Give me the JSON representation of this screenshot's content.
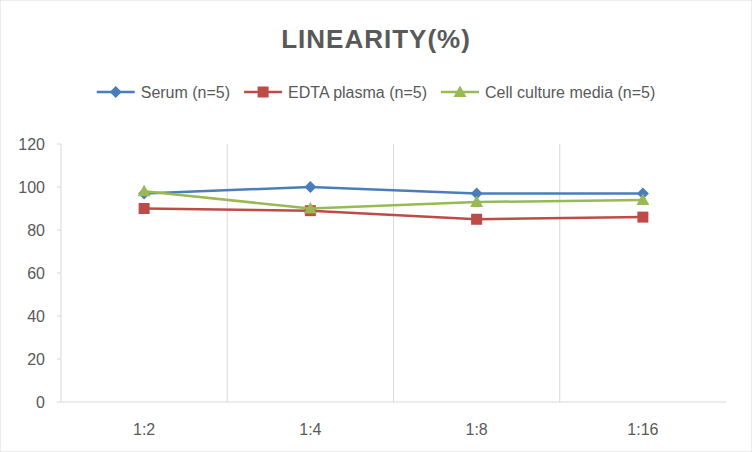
{
  "chart_data": {
    "type": "line",
    "title": "LINEARITY(%)",
    "categories": [
      "1:2",
      "1:4",
      "1:8",
      "1:16"
    ],
    "series": [
      {
        "name": "Serum (n=5)",
        "color": "#4a7ebb",
        "marker": "diamond",
        "values": [
          97,
          100,
          97,
          97
        ]
      },
      {
        "name": "EDTA plasma (n=5)",
        "color": "#be4b48",
        "marker": "square",
        "values": [
          90,
          89,
          85,
          86
        ]
      },
      {
        "name": "Cell culture media (n=5)",
        "color": "#98b954",
        "marker": "triangle",
        "values": [
          98,
          90,
          93,
          94
        ]
      }
    ],
    "ylim": [
      0,
      120
    ],
    "yticks": [
      0,
      20,
      40,
      60,
      80,
      100,
      120
    ],
    "grid": true,
    "legend": "top"
  }
}
